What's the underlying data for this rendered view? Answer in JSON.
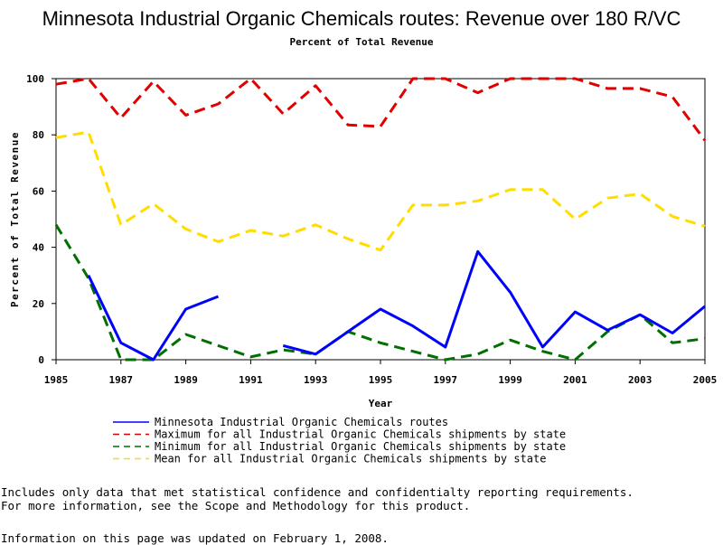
{
  "chart_data": {
    "type": "line",
    "title": "Minnesota Industrial Organic Chemicals routes: Revenue over 180 R/VC",
    "subtitle": "Percent of Total Revenue",
    "xlabel": "Year",
    "ylabel": "Percent of Total Revenue",
    "xlim": [
      1985,
      2005
    ],
    "ylim": [
      0,
      100
    ],
    "x_ticks": [
      "1985",
      "1987",
      "1989",
      "1991",
      "1993",
      "1995",
      "1997",
      "1999",
      "2001",
      "2003",
      "2005"
    ],
    "y_ticks": [
      "0",
      "20",
      "40",
      "60",
      "80",
      "100"
    ],
    "x": [
      1985,
      1986,
      1987,
      1988,
      1989,
      1990,
      1991,
      1992,
      1993,
      1994,
      1995,
      1996,
      1997,
      1998,
      1999,
      2000,
      2001,
      2002,
      2003,
      2004,
      2005
    ],
    "series": [
      {
        "name": "Minnesota Industrial Organic Chemicals routes",
        "color": "#0000ff",
        "dash": "solid",
        "values": [
          null,
          30,
          6,
          0,
          18,
          22.5,
          null,
          5,
          2,
          10,
          18,
          12,
          4.5,
          38.5,
          24,
          4.5,
          17,
          10.5,
          16,
          9.5,
          19
        ]
      },
      {
        "name": "Maximum for all Industrial Organic Chemicals shipments by state",
        "color": "#e00000",
        "dash": "dashed",
        "values": [
          98,
          100,
          86,
          99,
          87,
          91,
          100,
          87.5,
          97.5,
          83.5,
          83,
          100,
          100,
          95,
          100,
          100,
          100,
          96.5,
          96.5,
          93.5,
          78
        ]
      },
      {
        "name": "Minimum for all Industrial Organic Chemicals shipments by state",
        "color": "#007000",
        "dash": "dashed",
        "values": [
          48,
          29,
          0,
          0,
          9,
          5,
          1,
          3.5,
          2,
          10,
          6,
          3,
          0,
          2,
          7,
          3,
          0,
          10,
          16,
          6,
          7.5
        ]
      },
      {
        "name": "Mean for all Industrial Organic Chemicals shipments by state",
        "color": "#ffdd00",
        "dash": "dashed",
        "values": [
          79,
          81,
          48,
          55.5,
          46.5,
          42,
          46,
          44,
          48,
          43,
          39,
          55,
          55,
          56.5,
          60.5,
          60.5,
          50,
          57.5,
          59,
          51,
          47.5
        ]
      }
    ],
    "legend_position": "bottom",
    "grid": false
  },
  "footer": {
    "note_line1": "Includes only data that met statistical confidence and confidentialty reporting requirements.",
    "note_line2": "For more information, see the Scope and Methodology for this product.",
    "updated": "Information on this page was updated on February 1, 2008."
  }
}
